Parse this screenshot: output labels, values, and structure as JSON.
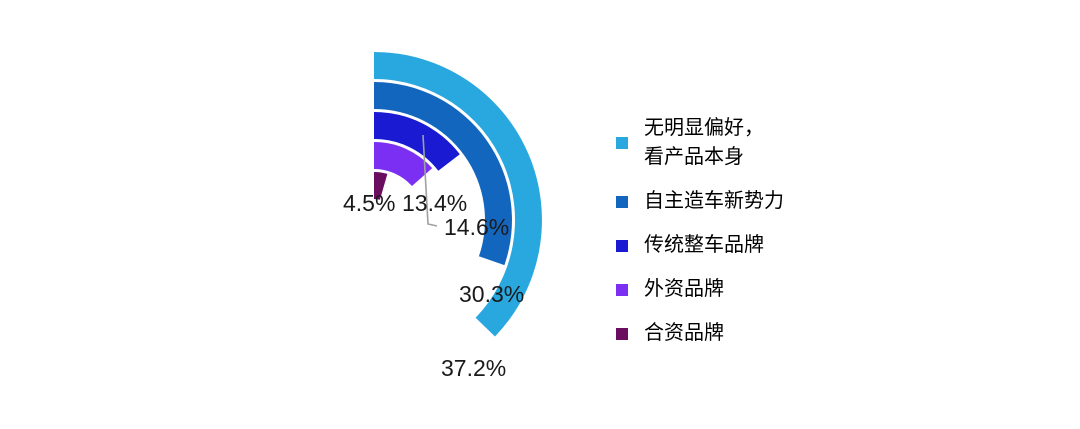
{
  "chart_data": {
    "type": "radial-bar",
    "title": "",
    "categories": [
      "无明显偏好，看产品本身",
      "自主造车新势力",
      "传统整车品牌",
      "外资品牌",
      "合资品牌"
    ],
    "values": [
      37.2,
      30.3,
      14.6,
      13.4,
      4.5
    ],
    "labels": [
      "37.2%",
      "30.3%",
      "14.6%",
      "13.4%",
      "4.5%"
    ],
    "unit": "%",
    "colors": [
      "#29A8E0",
      "#1366BE",
      "#1A1AD2",
      "#7B2FF2",
      "#6C0E60"
    ],
    "start_angle_deg": 0,
    "sweep_direction": "clockwise",
    "rings_order": "outer-to-inner",
    "legend_position": "right",
    "background_color": "#FFFFFF",
    "leader_line_color": "#A0A0A0",
    "label_text_color": "#1A1A1A"
  },
  "legend": {
    "items": [
      {
        "label": "无明显偏好，\n看产品本身"
      },
      {
        "label": "自主造车新势力"
      },
      {
        "label": "传统整车品牌"
      },
      {
        "label": "外资品牌"
      },
      {
        "label": "合资品牌"
      }
    ]
  }
}
